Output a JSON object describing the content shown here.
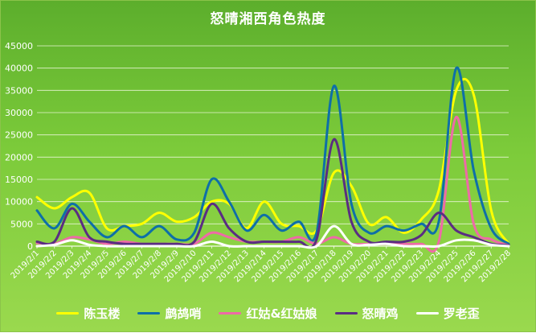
{
  "chart_data": {
    "type": "line",
    "title": "怒晴湘西角色热度",
    "xlabel": "",
    "ylabel": "",
    "ylim": [
      0,
      45000
    ],
    "yticks": [
      0,
      5000,
      10000,
      15000,
      20000,
      25000,
      30000,
      35000,
      40000,
      45000
    ],
    "grid": true,
    "legend_position": "bottom",
    "categories": [
      "2019/2/1",
      "2019/2/2",
      "2019/2/3",
      "2019/2/4",
      "2019/2/5",
      "2019/2/6",
      "2019/2/7",
      "2019/2/8",
      "2019/2/9",
      "2019/2/10",
      "2019/2/11",
      "2019/2/12",
      "2019/2/13",
      "2019/2/14",
      "2019/2/15",
      "2019/2/16",
      "2019/2/17",
      "2019/2/18",
      "2019/2/19",
      "2019/2/20",
      "2019/2/21",
      "2019/2/22",
      "2019/2/23",
      "2019/2/24",
      "2019/2/25",
      "2019/2/26",
      "2019/2/27",
      "2019/2/28"
    ],
    "tick_labels": [
      "2019/2/1",
      "2019/2/2",
      "2019/2/3",
      "2019/2/4",
      "2019/2/5",
      "2019/2/6",
      "2019/2/7",
      "2019/2/8",
      "2019/2/9",
      "2019/2/10",
      "2019/2/11",
      "2019/2/12",
      "2019/2/13",
      "2019/2/14",
      "2019/2/15",
      "2019/2/16",
      "2019/2/17",
      "2019/2/18",
      "2019/2/19",
      "2019/2/20",
      "2019/2/21",
      "2019/2/22",
      "2019/2/23",
      "2019/2/24",
      "2019/2/25",
      "2019/2/26",
      "2019/2/27",
      "2019/2/28"
    ],
    "series": [
      {
        "name": "陈玉楼",
        "color": "#ffff00",
        "values": [
          11000,
          8500,
          11000,
          12000,
          4000,
          4500,
          5000,
          7500,
          5500,
          6500,
          10000,
          9500,
          4000,
          10000,
          5000,
          4500,
          3500,
          16500,
          13500,
          5000,
          6500,
          3000,
          6000,
          12500,
          35000,
          34000,
          8000,
          500
        ]
      },
      {
        "name": "鹧鸪哨",
        "color": "#0e6fa8",
        "values": [
          8000,
          4000,
          9500,
          5500,
          2000,
          4500,
          2000,
          4500,
          1500,
          3000,
          15000,
          10000,
          3500,
          7000,
          3500,
          5500,
          3000,
          36000,
          9500,
          3000,
          4500,
          3500,
          5000,
          5500,
          40000,
          17000,
          4000,
          500
        ]
      },
      {
        "name": "红姑&红姑娘",
        "color": "#ee6aa7",
        "values": [
          700,
          500,
          2000,
          1500,
          500,
          1000,
          500,
          500,
          500,
          500,
          3000,
          2000,
          1000,
          1000,
          1000,
          2000,
          500,
          2000,
          500,
          500,
          500,
          500,
          500,
          1000,
          29000,
          5000,
          1500,
          200
        ]
      },
      {
        "name": "怒晴鸡",
        "color": "#5a2d82",
        "values": [
          1000,
          1000,
          8500,
          2000,
          1000,
          500,
          500,
          500,
          500,
          1000,
          9500,
          4000,
          1000,
          1000,
          1000,
          1000,
          1500,
          24000,
          5500,
          1000,
          1000,
          1000,
          2500,
          7500,
          3500,
          2000,
          500,
          200
        ]
      },
      {
        "name": "罗老歪",
        "color": "#ffffff",
        "values": [
          0,
          300,
          1300,
          300,
          0,
          0,
          0,
          0,
          0,
          0,
          1000,
          0,
          0,
          0,
          0,
          0,
          0,
          4500,
          500,
          300,
          500,
          0,
          0,
          0,
          1300,
          1300,
          300,
          0
        ]
      }
    ]
  }
}
